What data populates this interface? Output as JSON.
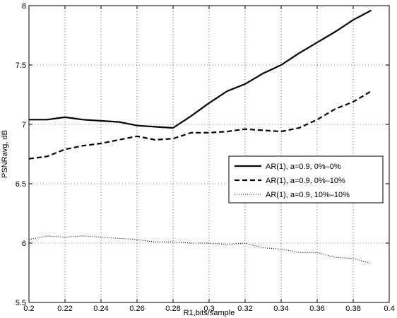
{
  "chart_data": {
    "type": "line",
    "title": "",
    "xlabel": "R1,bits/sample",
    "ylabel": "PSNRavg, dB",
    "xlim": [
      0.2,
      0.4
    ],
    "ylim": [
      5.5,
      8
    ],
    "xticks": [
      0.2,
      0.22,
      0.24,
      0.26,
      0.28,
      0.3,
      0.32,
      0.34,
      0.36,
      0.38,
      0.4
    ],
    "yticks": [
      5.5,
      6,
      6.5,
      7,
      7.5,
      8
    ],
    "xtick_labels": [
      "0.2",
      "0.22",
      "0.24",
      "0.26",
      "0.28",
      "0.3",
      "0.32",
      "0.34",
      "0.36",
      "0.38",
      "0.4"
    ],
    "ytick_labels": [
      "5.5",
      "6",
      "6.5",
      "7",
      "7.5",
      "8"
    ],
    "grid": true,
    "legend_position": "right-center",
    "series": [
      {
        "name": "AR(1), a=0.9, 0%–0%",
        "style": "solid",
        "color": "#000000",
        "x": [
          0.2,
          0.21,
          0.22,
          0.23,
          0.24,
          0.25,
          0.26,
          0.27,
          0.28,
          0.29,
          0.3,
          0.31,
          0.32,
          0.33,
          0.34,
          0.35,
          0.36,
          0.37,
          0.38,
          0.39
        ],
        "y": [
          7.04,
          7.04,
          7.06,
          7.04,
          7.03,
          7.02,
          6.99,
          6.98,
          6.97,
          7.07,
          7.18,
          7.28,
          7.34,
          7.43,
          7.5,
          7.6,
          7.69,
          7.78,
          7.88,
          7.96
        ]
      },
      {
        "name": "AR(1), a=0.9, 0%–10%",
        "style": "dashed",
        "color": "#000000",
        "x": [
          0.2,
          0.21,
          0.22,
          0.23,
          0.24,
          0.25,
          0.26,
          0.27,
          0.28,
          0.29,
          0.3,
          0.31,
          0.32,
          0.33,
          0.34,
          0.35,
          0.36,
          0.37,
          0.38,
          0.39
        ],
        "y": [
          6.71,
          6.73,
          6.79,
          6.82,
          6.84,
          6.87,
          6.9,
          6.87,
          6.88,
          6.93,
          6.93,
          6.94,
          6.96,
          6.95,
          6.94,
          6.97,
          7.04,
          7.13,
          7.19,
          7.28
        ]
      },
      {
        "name": "AR(1), a=0.9, 10%–10%",
        "style": "dotted",
        "color": "#000000",
        "x": [
          0.2,
          0.21,
          0.22,
          0.23,
          0.24,
          0.25,
          0.26,
          0.27,
          0.28,
          0.29,
          0.3,
          0.31,
          0.32,
          0.33,
          0.34,
          0.35,
          0.36,
          0.37,
          0.38,
          0.39
        ],
        "y": [
          6.03,
          6.06,
          6.05,
          6.06,
          6.05,
          6.04,
          6.03,
          6.01,
          6.01,
          6.0,
          6.0,
          5.99,
          6.0,
          5.96,
          5.95,
          5.92,
          5.92,
          5.88,
          5.87,
          5.83
        ]
      }
    ]
  }
}
